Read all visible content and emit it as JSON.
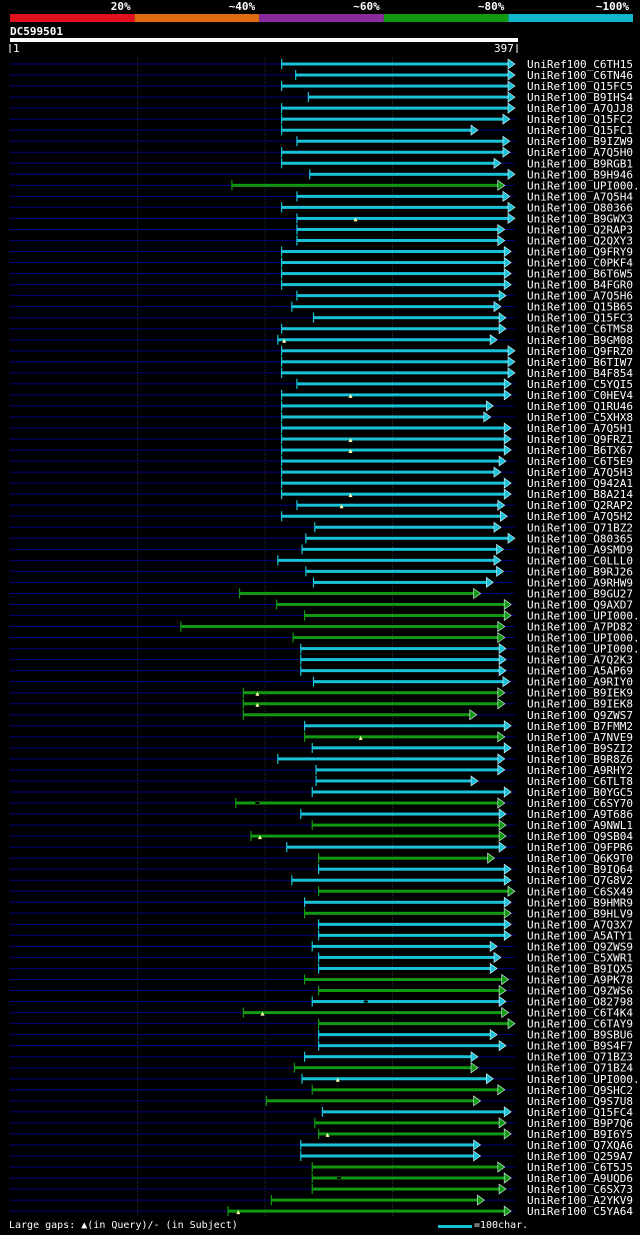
{
  "query_name": "DC599501",
  "query_start": "1",
  "query_end": "397",
  "colors": {
    "bg": "#000000",
    "cyan": "#19c2d8",
    "green": "#119911",
    "lane": "#000080",
    "scale": [
      "#e0101f",
      "#e06a10",
      "#8a2a9e",
      "#119911",
      "#10b6c8"
    ]
  },
  "legend": {
    "gaps_text": "Large gaps:",
    "query_mark": "▲(in Query)/",
    "subject_mark": "- (in Subject)",
    "scale_text": "=100char."
  },
  "chart_data": {
    "type": "alignment",
    "title": "DC599501",
    "query_length": 397,
    "identity_scale": [
      "20%",
      "~40%",
      "~60%",
      "~80%",
      "~100%"
    ],
    "hits": [
      {
        "name": "UniRef100_C6TH15",
        "start": 214,
        "end": 397,
        "identity": "cyan"
      },
      {
        "name": "UniRef100_C6TN46",
        "start": 225,
        "end": 397,
        "identity": "cyan"
      },
      {
        "name": "UniRef100_Q15FC5",
        "start": 214,
        "end": 397,
        "identity": "cyan"
      },
      {
        "name": "UniRef100_B9IHS4",
        "start": 235,
        "end": 397,
        "identity": "cyan"
      },
      {
        "name": "UniRef100_A7QJJ8",
        "start": 214,
        "end": 397,
        "identity": "cyan"
      },
      {
        "name": "UniRef100_Q15FC2",
        "start": 214,
        "end": 393,
        "identity": "cyan"
      },
      {
        "name": "UniRef100_Q15FC1",
        "start": 214,
        "end": 368,
        "identity": "cyan"
      },
      {
        "name": "UniRef100_B9IZW9",
        "start": 226,
        "end": 393,
        "identity": "cyan"
      },
      {
        "name": "UniRef100_A7Q5H0",
        "start": 214,
        "end": 393,
        "identity": "cyan"
      },
      {
        "name": "UniRef100_B9RGB1",
        "start": 214,
        "end": 386,
        "identity": "cyan"
      },
      {
        "name": "UniRef100_B9H946",
        "start": 236,
        "end": 397,
        "identity": "cyan"
      },
      {
        "name": "UniRef100_UPI000..",
        "start": 175,
        "end": 389,
        "identity": "green"
      },
      {
        "name": "UniRef100_A7Q5H4",
        "start": 226,
        "end": 393,
        "identity": "cyan"
      },
      {
        "name": "UniRef100_O80366",
        "start": 214,
        "end": 397,
        "identity": "cyan"
      },
      {
        "name": "UniRef100_B9GWX3",
        "start": 226,
        "end": 397,
        "identity": "cyan",
        "query_gap": [
          272
        ]
      },
      {
        "name": "UniRef100_Q2RAP3",
        "start": 226,
        "end": 389,
        "identity": "cyan"
      },
      {
        "name": "UniRef100_Q2QXY3",
        "start": 226,
        "end": 389,
        "identity": "cyan"
      },
      {
        "name": "UniRef100_Q9FRY9",
        "start": 214,
        "end": 394,
        "identity": "cyan"
      },
      {
        "name": "UniRef100_C0PKF4",
        "start": 214,
        "end": 394,
        "identity": "cyan"
      },
      {
        "name": "UniRef100_B6T6W5",
        "start": 214,
        "end": 394,
        "identity": "cyan"
      },
      {
        "name": "UniRef100_B4FGR0",
        "start": 214,
        "end": 394,
        "identity": "cyan"
      },
      {
        "name": "UniRef100_A7Q5H6",
        "start": 226,
        "end": 390,
        "identity": "cyan"
      },
      {
        "name": "UniRef100_Q15B65",
        "start": 222,
        "end": 386,
        "identity": "cyan"
      },
      {
        "name": "UniRef100_Q15FC3",
        "start": 239,
        "end": 390,
        "identity": "cyan"
      },
      {
        "name": "UniRef100_C6TMS8",
        "start": 214,
        "end": 390,
        "identity": "cyan"
      },
      {
        "name": "UniRef100_B9GM08",
        "start": 211,
        "end": 383,
        "identity": "cyan",
        "query_gap": [
          216
        ]
      },
      {
        "name": "UniRef100_Q9FRZ0",
        "start": 214,
        "end": 397,
        "identity": "cyan"
      },
      {
        "name": "UniRef100_B6TIW7",
        "start": 214,
        "end": 397,
        "identity": "cyan"
      },
      {
        "name": "UniRef100_B4F854",
        "start": 214,
        "end": 397,
        "identity": "cyan"
      },
      {
        "name": "UniRef100_C5YQI5",
        "start": 226,
        "end": 394,
        "identity": "cyan"
      },
      {
        "name": "UniRef100_C0HEV4",
        "start": 214,
        "end": 394,
        "identity": "cyan",
        "query_gap": [
          268
        ]
      },
      {
        "name": "UniRef100_Q1RU46",
        "start": 214,
        "end": 380,
        "identity": "cyan"
      },
      {
        "name": "UniRef100_C5XHX8",
        "start": 214,
        "end": 378,
        "identity": "cyan"
      },
      {
        "name": "UniRef100_A7Q5H1",
        "start": 214,
        "end": 394,
        "identity": "cyan"
      },
      {
        "name": "UniRef100_Q9FRZ1",
        "start": 214,
        "end": 394,
        "identity": "cyan",
        "query_gap": [
          268
        ]
      },
      {
        "name": "UniRef100_B6TX67",
        "start": 214,
        "end": 394,
        "identity": "cyan",
        "query_gap": [
          268
        ]
      },
      {
        "name": "UniRef100_C6T5E9",
        "start": 214,
        "end": 390,
        "identity": "cyan"
      },
      {
        "name": "UniRef100_A7Q5H3",
        "start": 214,
        "end": 386,
        "identity": "cyan"
      },
      {
        "name": "UniRef100_Q942A1",
        "start": 214,
        "end": 394,
        "identity": "cyan"
      },
      {
        "name": "UniRef100_B8A214",
        "start": 214,
        "end": 394,
        "identity": "cyan",
        "query_gap": [
          268
        ]
      },
      {
        "name": "UniRef100_Q2RAP2",
        "start": 226,
        "end": 389,
        "identity": "cyan",
        "query_gap": [
          261
        ]
      },
      {
        "name": "UniRef100_A7Q5H2",
        "start": 214,
        "end": 391,
        "identity": "cyan"
      },
      {
        "name": "UniRef100_Q71BZ2",
        "start": 240,
        "end": 386,
        "identity": "cyan"
      },
      {
        "name": "UniRef100_O80365",
        "start": 233,
        "end": 397,
        "identity": "cyan"
      },
      {
        "name": "UniRef100_A9SMD9",
        "start": 230,
        "end": 388,
        "identity": "cyan"
      },
      {
        "name": "UniRef100_C0LLL0",
        "start": 211,
        "end": 386,
        "identity": "cyan"
      },
      {
        "name": "UniRef100_B9RJ26",
        "start": 233,
        "end": 388,
        "identity": "cyan"
      },
      {
        "name": "UniRef100_A9RHW9",
        "start": 239,
        "end": 380,
        "identity": "cyan"
      },
      {
        "name": "UniRef100_B9GU27",
        "start": 181,
        "end": 370,
        "identity": "green"
      },
      {
        "name": "UniRef100_Q9AXD7",
        "start": 210,
        "end": 394,
        "identity": "green"
      },
      {
        "name": "UniRef100_UPI000..",
        "start": 232,
        "end": 394,
        "identity": "green"
      },
      {
        "name": "UniRef100_A7PD82",
        "start": 135,
        "end": 389,
        "identity": "green"
      },
      {
        "name": "UniRef100_UPI000..",
        "start": 223,
        "end": 389,
        "identity": "green"
      },
      {
        "name": "UniRef100_UPI000..",
        "start": 229,
        "end": 390,
        "identity": "cyan"
      },
      {
        "name": "UniRef100_A7Q2K3",
        "start": 229,
        "end": 390,
        "identity": "cyan"
      },
      {
        "name": "UniRef100_A5AP69",
        "start": 229,
        "end": 390,
        "identity": "cyan"
      },
      {
        "name": "UniRef100_A9RIY0",
        "start": 239,
        "end": 393,
        "identity": "cyan"
      },
      {
        "name": "UniRef100_B9IEK9",
        "start": 184,
        "end": 389,
        "identity": "green",
        "query_gap": [
          195
        ]
      },
      {
        "name": "UniRef100_B9IEK8",
        "start": 184,
        "end": 389,
        "identity": "green",
        "query_gap": [
          195
        ]
      },
      {
        "name": "UniRef100_Q9ZWS7",
        "start": 184,
        "end": 367,
        "identity": "green"
      },
      {
        "name": "UniRef100_B7FMM2",
        "start": 232,
        "end": 394,
        "identity": "cyan"
      },
      {
        "name": "UniRef100_A7NVE9",
        "start": 232,
        "end": 389,
        "identity": "green",
        "query_gap": [
          276
        ]
      },
      {
        "name": "UniRef100_B9SZI2",
        "start": 238,
        "end": 394,
        "identity": "cyan"
      },
      {
        "name": "UniRef100_B9R8Z6",
        "start": 211,
        "end": 389,
        "identity": "cyan"
      },
      {
        "name": "UniRef100_A9RHY2",
        "start": 241,
        "end": 389,
        "identity": "cyan"
      },
      {
        "name": "UniRef100_C6TLT8",
        "start": 241,
        "end": 368,
        "identity": "cyan"
      },
      {
        "name": "UniRef100_B0YGC5",
        "start": 238,
        "end": 394,
        "identity": "cyan"
      },
      {
        "name": "UniRef100_C6SY70",
        "start": 178,
        "end": 389,
        "identity": "green",
        "subject_gap": [
          195
        ]
      },
      {
        "name": "UniRef100_A9T686",
        "start": 229,
        "end": 390,
        "identity": "cyan"
      },
      {
        "name": "UniRef100_A9NWL1",
        "start": 238,
        "end": 390,
        "identity": "green"
      },
      {
        "name": "UniRef100_Q9SB04",
        "start": 190,
        "end": 390,
        "identity": "green",
        "query_gap": [
          197
        ]
      },
      {
        "name": "UniRef100_Q9FPR6",
        "start": 218,
        "end": 390,
        "identity": "cyan"
      },
      {
        "name": "UniRef100_Q6K9T0",
        "start": 243,
        "end": 381,
        "identity": "green"
      },
      {
        "name": "UniRef100_B9IQ64",
        "start": 243,
        "end": 394,
        "identity": "cyan"
      },
      {
        "name": "UniRef100_Q7G8V2",
        "start": 222,
        "end": 394,
        "identity": "cyan"
      },
      {
        "name": "UniRef100_C6SX49",
        "start": 243,
        "end": 397,
        "identity": "green"
      },
      {
        "name": "UniRef100_B9HMR9",
        "start": 232,
        "end": 394,
        "identity": "cyan"
      },
      {
        "name": "UniRef100_B9HLV9",
        "start": 232,
        "end": 394,
        "identity": "green"
      },
      {
        "name": "UniRef100_A7Q3X7",
        "start": 243,
        "end": 394,
        "identity": "cyan"
      },
      {
        "name": "UniRef100_A5ATY1",
        "start": 243,
        "end": 394,
        "identity": "cyan"
      },
      {
        "name": "UniRef100_Q9ZWS9",
        "start": 238,
        "end": 383,
        "identity": "cyan"
      },
      {
        "name": "UniRef100_C5XWR1",
        "start": 243,
        "end": 386,
        "identity": "cyan"
      },
      {
        "name": "UniRef100_B9IQX5",
        "start": 243,
        "end": 383,
        "identity": "cyan"
      },
      {
        "name": "UniRef100_A9PK78",
        "start": 232,
        "end": 392,
        "identity": "green"
      },
      {
        "name": "UniRef100_Q9ZWS6",
        "start": 243,
        "end": 390,
        "identity": "green"
      },
      {
        "name": "UniRef100_O82798",
        "start": 238,
        "end": 390,
        "identity": "cyan",
        "subject_gap": [
          280
        ]
      },
      {
        "name": "UniRef100_C6T4K4",
        "start": 184,
        "end": 392,
        "identity": "green",
        "query_gap": [
          199
        ]
      },
      {
        "name": "UniRef100_C6TAY9",
        "start": 243,
        "end": 397,
        "identity": "green"
      },
      {
        "name": "UniRef100_B9SBU6",
        "start": 243,
        "end": 383,
        "identity": "cyan"
      },
      {
        "name": "UniRef100_B9S4F7",
        "start": 243,
        "end": 390,
        "identity": "cyan"
      },
      {
        "name": "UniRef100_Q71BZ3",
        "start": 232,
        "end": 368,
        "identity": "cyan"
      },
      {
        "name": "UniRef100_Q71BZ4",
        "start": 224,
        "end": 368,
        "identity": "green"
      },
      {
        "name": "UniRef100_UPI000..",
        "start": 230,
        "end": 380,
        "identity": "cyan",
        "query_gap": [
          258
        ]
      },
      {
        "name": "UniRef100_Q9SHC2",
        "start": 238,
        "end": 389,
        "identity": "green"
      },
      {
        "name": "UniRef100_Q9S7U8",
        "start": 202,
        "end": 370,
        "identity": "green"
      },
      {
        "name": "UniRef100_Q15FC4",
        "start": 246,
        "end": 394,
        "identity": "cyan"
      },
      {
        "name": "UniRef100_B9P7Q6",
        "start": 240,
        "end": 390,
        "identity": "green"
      },
      {
        "name": "UniRef100_B9I6Y5",
        "start": 243,
        "end": 394,
        "identity": "green",
        "query_gap": [
          250
        ]
      },
      {
        "name": "UniRef100_Q7XQA6",
        "start": 229,
        "end": 370,
        "identity": "cyan"
      },
      {
        "name": "UniRef100_Q259A7",
        "start": 229,
        "end": 370,
        "identity": "cyan"
      },
      {
        "name": "UniRef100_C6T5J5",
        "start": 238,
        "end": 389,
        "identity": "green"
      },
      {
        "name": "UniRef100_A9UQD6",
        "start": 238,
        "end": 394,
        "identity": "green",
        "subject_gap": [
          259
        ]
      },
      {
        "name": "UniRef100_C6SX73",
        "start": 238,
        "end": 390,
        "identity": "green"
      },
      {
        "name": "UniRef100_A2YKV9",
        "start": 206,
        "end": 373,
        "identity": "green"
      },
      {
        "name": "UniRef100_C5YA64",
        "start": 172,
        "end": 394,
        "identity": "green",
        "query_gap": [
          180
        ]
      }
    ]
  }
}
